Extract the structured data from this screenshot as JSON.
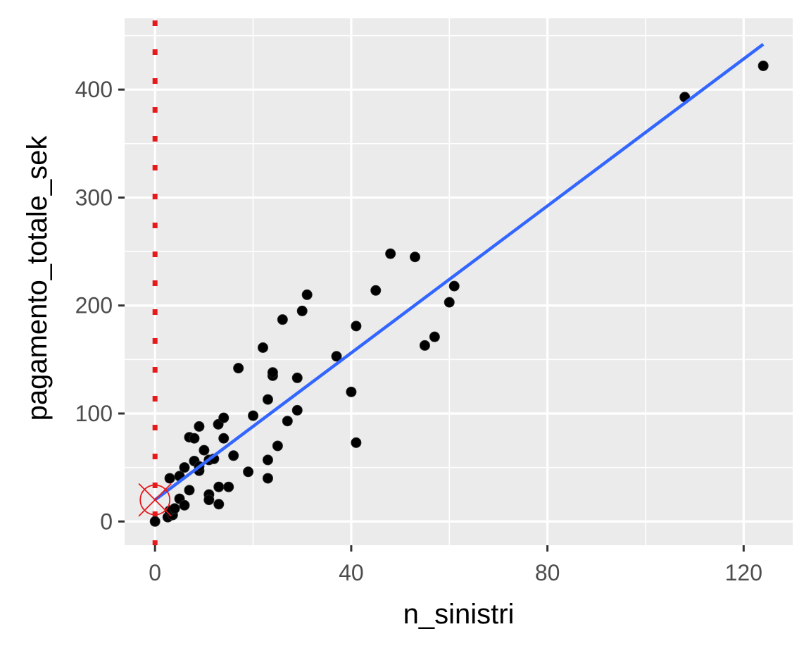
{
  "chart_data": {
    "type": "scatter",
    "title": "",
    "xlabel": "n_sinistri",
    "ylabel": "pagamento_totale_sek",
    "xlim": [
      -6.2,
      130
    ],
    "ylim": [
      -22,
      466
    ],
    "x_ticks": [
      0,
      40,
      80,
      120
    ],
    "x_tick_labels": [
      "0",
      "40",
      "80",
      "120"
    ],
    "y_ticks": [
      0,
      100,
      200,
      300,
      400
    ],
    "y_tick_labels": [
      "0",
      "100",
      "200",
      "300",
      "400"
    ],
    "x_minor_grid": [
      20,
      60,
      100
    ],
    "y_minor_grid": [
      50,
      150,
      250,
      350,
      450
    ],
    "grid": true,
    "legend": null,
    "colors": {
      "panel_background": "#ebebeb",
      "grid": "#ffffff",
      "points": "#000000",
      "fit_line": "#3366ff",
      "vline": "#e41a1c",
      "marker": "#e41a1c"
    },
    "points": [
      {
        "x": 0,
        "y": 0
      },
      {
        "x": 2.6,
        "y": 4
      },
      {
        "x": 3.6,
        "y": 6
      },
      {
        "x": 3,
        "y": 10
      },
      {
        "x": 4,
        "y": 12
      },
      {
        "x": 5,
        "y": 21
      },
      {
        "x": 6,
        "y": 15
      },
      {
        "x": 7,
        "y": 29
      },
      {
        "x": 3,
        "y": 40
      },
      {
        "x": 5,
        "y": 42
      },
      {
        "x": 6,
        "y": 50
      },
      {
        "x": 8,
        "y": 56
      },
      {
        "x": 9,
        "y": 47
      },
      {
        "x": 9,
        "y": 51
      },
      {
        "x": 11,
        "y": 57
      },
      {
        "x": 12,
        "y": 58
      },
      {
        "x": 10,
        "y": 66
      },
      {
        "x": 7,
        "y": 78
      },
      {
        "x": 8,
        "y": 77
      },
      {
        "x": 9,
        "y": 88
      },
      {
        "x": 12.9,
        "y": 90
      },
      {
        "x": 14,
        "y": 96
      },
      {
        "x": 14,
        "y": 77
      },
      {
        "x": 16,
        "y": 61
      },
      {
        "x": 11,
        "y": 25
      },
      {
        "x": 11,
        "y": 20
      },
      {
        "x": 13,
        "y": 32
      },
      {
        "x": 15,
        "y": 32
      },
      {
        "x": 13,
        "y": 16
      },
      {
        "x": 19,
        "y": 46
      },
      {
        "x": 23,
        "y": 40
      },
      {
        "x": 23,
        "y": 57
      },
      {
        "x": 25,
        "y": 70
      },
      {
        "x": 20,
        "y": 98
      },
      {
        "x": 27,
        "y": 93
      },
      {
        "x": 29,
        "y": 103
      },
      {
        "x": 23,
        "y": 113
      },
      {
        "x": 17,
        "y": 142
      },
      {
        "x": 24,
        "y": 135
      },
      {
        "x": 24,
        "y": 138
      },
      {
        "x": 29,
        "y": 133
      },
      {
        "x": 22,
        "y": 161
      },
      {
        "x": 26,
        "y": 187
      },
      {
        "x": 30,
        "y": 195
      },
      {
        "x": 31,
        "y": 210
      },
      {
        "x": 37,
        "y": 153
      },
      {
        "x": 40,
        "y": 120
      },
      {
        "x": 41,
        "y": 73
      },
      {
        "x": 41,
        "y": 181
      },
      {
        "x": 45,
        "y": 214
      },
      {
        "x": 48,
        "y": 248
      },
      {
        "x": 53,
        "y": 245
      },
      {
        "x": 55,
        "y": 163
      },
      {
        "x": 57,
        "y": 171
      },
      {
        "x": 60,
        "y": 203
      },
      {
        "x": 61,
        "y": 218
      },
      {
        "x": 108,
        "y": 393
      },
      {
        "x": 124,
        "y": 422
      }
    ],
    "fit_line": {
      "x0": 0,
      "y0": 20,
      "x1": 124,
      "y1": 442
    },
    "vertical_reference_line": {
      "x": 0,
      "style": "dotted"
    },
    "highlight_marker": {
      "x": 0,
      "y": 20,
      "shape": "circle-x"
    }
  }
}
